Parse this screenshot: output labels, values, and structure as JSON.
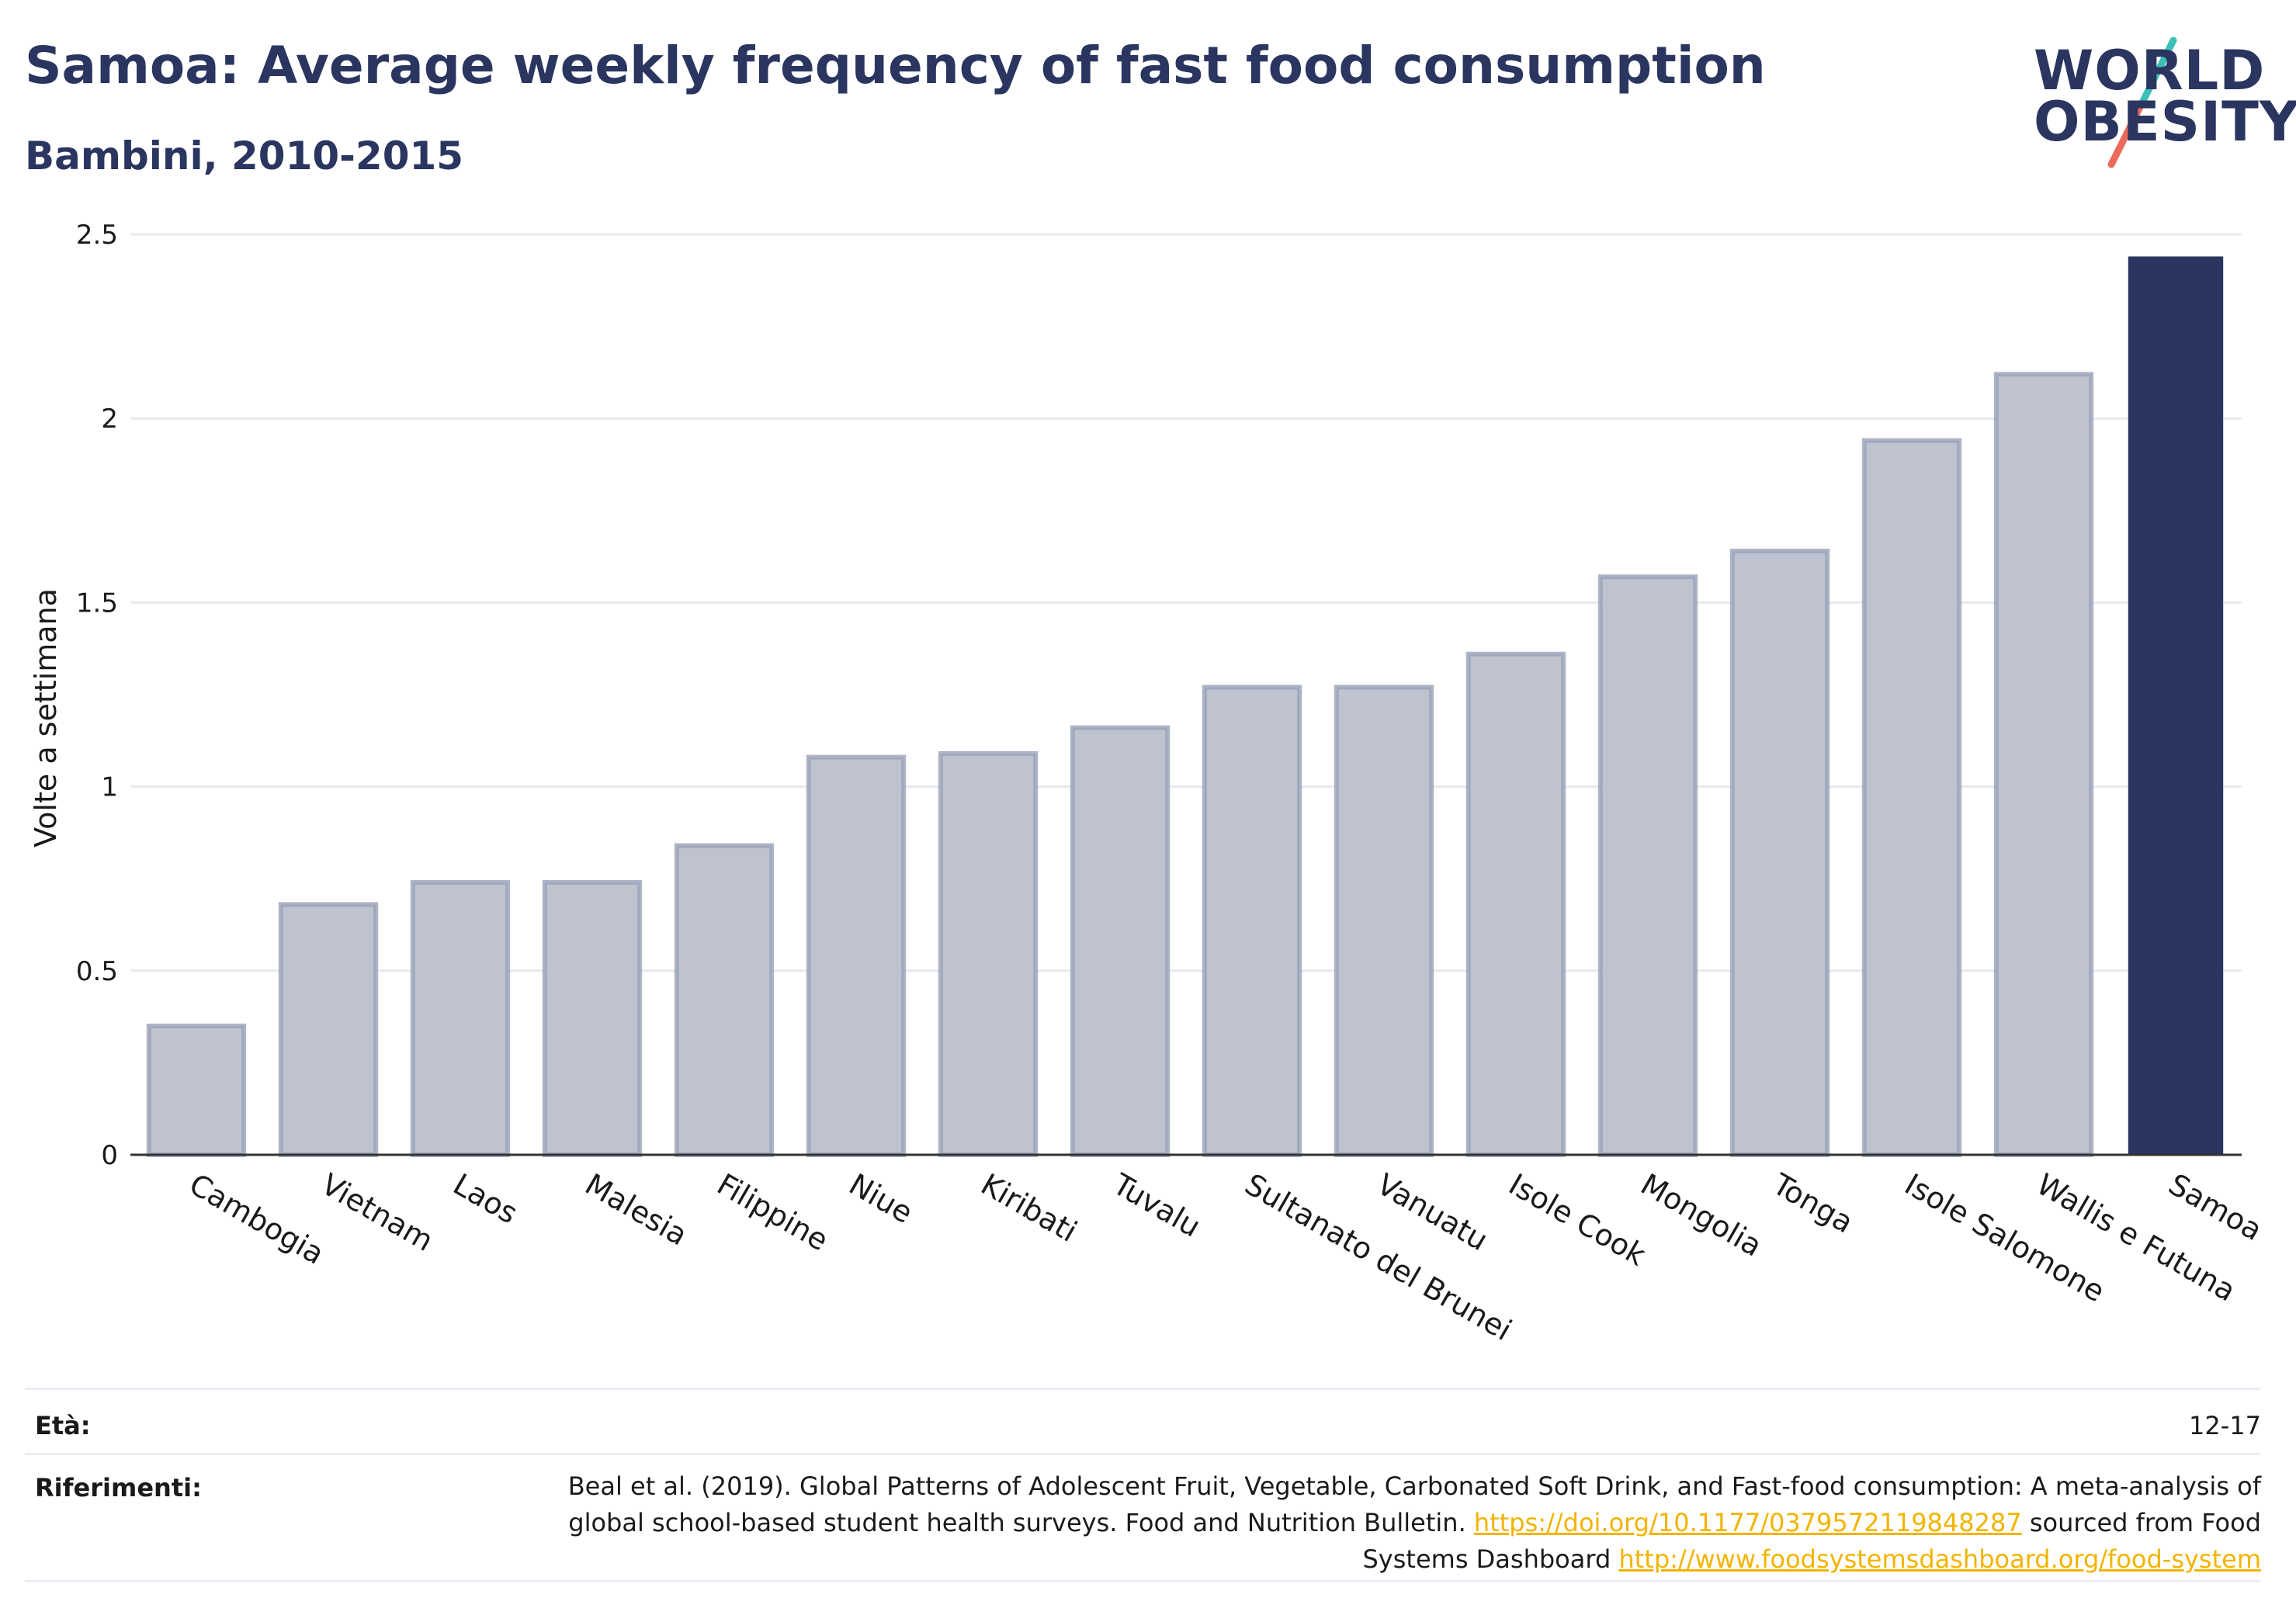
{
  "header": {
    "title": "Samoa: Average weekly frequency of fast food consumption",
    "subtitle": "Bambini, 2010-2015"
  },
  "logo": {
    "line1": "WORLD",
    "line2": "OBESITY"
  },
  "colors": {
    "navy": "#2a3560",
    "bar_muted": "#bfc3d0",
    "bar_muted_border": "#9aa1b8",
    "logo_slash_teal": "#3dbfb8",
    "logo_slash_coral": "#ec6a5c",
    "link": "#f2b400"
  },
  "chart_data": {
    "type": "bar",
    "title": "Samoa: Average weekly frequency of fast food consumption",
    "subtitle": "Bambini, 2010-2015",
    "ylabel": "Volte a settimana",
    "xlabel": "",
    "ylim": [
      0,
      2.5
    ],
    "yticks": [
      0,
      0.5,
      1,
      1.5,
      2,
      2.5
    ],
    "ytick_labels": [
      "0",
      "0.5",
      "1",
      "1.5",
      "2",
      "2.5"
    ],
    "grid": true,
    "highlight": "Samoa",
    "categories": [
      "Cambogia",
      "Vietnam",
      "Laos",
      "Malesia",
      "Filippine",
      "Niue",
      "Kiribati",
      "Tuvalu",
      "Sultanato del Brunei",
      "Vanuatu",
      "Isole Cook",
      "Mongolia",
      "Tonga",
      "Isole Salomone",
      "Wallis e Futuna",
      "Samoa"
    ],
    "values": [
      0.35,
      0.68,
      0.74,
      0.74,
      0.84,
      1.08,
      1.09,
      1.16,
      1.27,
      1.27,
      1.36,
      1.57,
      1.64,
      1.94,
      2.12,
      2.44
    ]
  },
  "footer": {
    "age_label": "Età:",
    "age_value": "12-17",
    "ref_label": "Riferimenti:",
    "ref_text_1": "Beal et al. (2019). Global Patterns of Adolescent Fruit, Vegetable, Carbonated Soft Drink, and Fast-food consumption: A meta-analysis of global school-based student health surveys. Food and Nutrition Bulletin. ",
    "ref_link_1": "https://doi.org/10.1177/0379572119848287",
    "ref_text_2": " sourced from Food Systems Dashboard ",
    "ref_link_2": "http://www.foodsystemsdashboard.org/food-system"
  }
}
